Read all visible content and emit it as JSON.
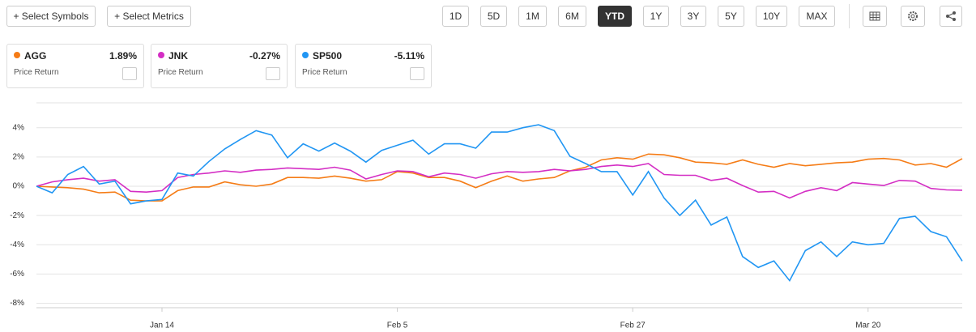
{
  "toolbar": {
    "select_symbols": "+ Select Symbols",
    "select_metrics": "+ Select Metrics",
    "ranges": [
      "1D",
      "5D",
      "1M",
      "6M",
      "YTD",
      "1Y",
      "3Y",
      "5Y",
      "10Y",
      "MAX"
    ],
    "active_range": 4
  },
  "chart_data": {
    "type": "line",
    "legend_values": [
      "1.89%",
      "-0.27%",
      "-5.11%"
    ],
    "legend_subtitle": "Price Return",
    "categories": [
      null,
      null,
      null,
      null,
      null,
      null,
      null,
      null,
      "Jan 14",
      null,
      null,
      null,
      null,
      null,
      null,
      null,
      null,
      null,
      null,
      null,
      null,
      null,
      null,
      "Feb 5",
      null,
      null,
      null,
      null,
      null,
      null,
      null,
      null,
      null,
      null,
      null,
      null,
      null,
      null,
      "Feb 27",
      null,
      null,
      null,
      null,
      null,
      null,
      null,
      null,
      null,
      null,
      null,
      null,
      null,
      null,
      "Mar 20",
      null,
      null,
      null,
      null,
      null,
      null
    ],
    "series": [
      {
        "name": "AGG",
        "color": "#f57c16",
        "values": [
          0,
          -0.05,
          -0.1,
          -0.2,
          -0.45,
          -0.4,
          -0.95,
          -1.0,
          -1.0,
          -0.3,
          -0.05,
          -0.05,
          0.3,
          0.1,
          0.0,
          0.15,
          0.6,
          0.6,
          0.55,
          0.7,
          0.55,
          0.35,
          0.45,
          1.0,
          0.9,
          0.6,
          0.6,
          0.35,
          -0.1,
          0.35,
          0.7,
          0.35,
          0.5,
          0.6,
          1.05,
          1.3,
          1.8,
          1.95,
          1.85,
          2.2,
          2.15,
          1.95,
          1.65,
          1.6,
          1.5,
          1.8,
          1.5,
          1.3,
          1.55,
          1.4,
          1.5,
          1.6,
          1.65,
          1.85,
          1.9,
          1.8,
          1.45,
          1.55,
          1.3,
          1.89
        ]
      },
      {
        "name": "JNK",
        "color": "#d42ec4",
        "values": [
          0,
          0.3,
          0.45,
          0.55,
          0.35,
          0.45,
          -0.35,
          -0.4,
          -0.3,
          0.6,
          0.8,
          0.9,
          1.05,
          0.95,
          1.1,
          1.15,
          1.25,
          1.2,
          1.15,
          1.3,
          1.1,
          0.5,
          0.8,
          1.05,
          1.0,
          0.65,
          0.9,
          0.8,
          0.55,
          0.85,
          1.0,
          0.95,
          1.0,
          1.15,
          1.05,
          1.15,
          1.35,
          1.45,
          1.35,
          1.55,
          0.8,
          0.75,
          0.75,
          0.4,
          0.55,
          0.05,
          -0.4,
          -0.35,
          -0.8,
          -0.35,
          -0.1,
          -0.3,
          0.25,
          0.15,
          0.05,
          0.4,
          0.35,
          -0.15,
          -0.25,
          -0.27
        ]
      },
      {
        "name": "SP500",
        "color": "#2196f3",
        "values": [
          0,
          -0.45,
          0.8,
          1.35,
          0.15,
          0.35,
          -1.2,
          -1.0,
          -0.9,
          0.9,
          0.7,
          1.7,
          2.55,
          3.2,
          3.8,
          3.5,
          1.95,
          2.9,
          2.4,
          2.95,
          2.4,
          1.65,
          2.45,
          2.8,
          3.15,
          2.2,
          2.9,
          2.9,
          2.6,
          3.7,
          3.7,
          4.0,
          4.2,
          3.8,
          2.05,
          1.55,
          1.0,
          1.0,
          -0.6,
          1.0,
          -0.8,
          -2.0,
          -0.95,
          -2.65,
          -2.1,
          -4.8,
          -5.55,
          -5.1,
          -6.45,
          -4.4,
          -3.8,
          -4.8,
          -3.8,
          -4.0,
          -3.9,
          -2.2,
          -2.05,
          -3.1,
          -3.45,
          -5.11
        ]
      }
    ],
    "ylim": [
      -8.3,
      5.7
    ],
    "yticks": [
      {
        "value": 4,
        "label": "4%"
      },
      {
        "value": 2,
        "label": "2%"
      },
      {
        "value": 0,
        "label": "0%"
      },
      {
        "value": -2,
        "label": "-2%"
      },
      {
        "value": -4,
        "label": "-4%"
      },
      {
        "value": -6,
        "label": "-6%"
      },
      {
        "value": -8,
        "label": "-8%"
      }
    ],
    "grid": true
  }
}
